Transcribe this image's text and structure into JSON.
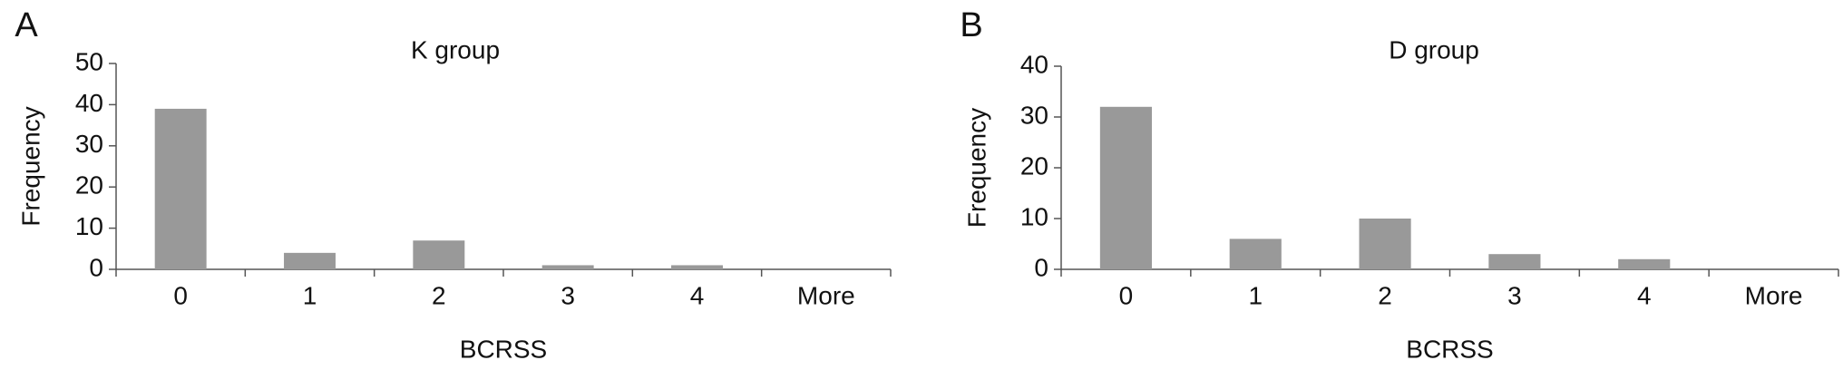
{
  "chart_data": [
    {
      "type": "bar",
      "panel": "A",
      "title": "K group",
      "xlabel": "BCRSS",
      "ylabel": "Frequency",
      "categories": [
        "0",
        "1",
        "2",
        "3",
        "4",
        "More"
      ],
      "values": [
        39,
        4,
        7,
        1,
        1,
        0
      ],
      "color": "#999999",
      "ylim": [
        0,
        50
      ],
      "yticks": [
        0,
        10,
        20,
        30,
        40,
        50
      ],
      "grid": false
    },
    {
      "type": "bar",
      "panel": "B",
      "title": "D group",
      "xlabel": "BCRSS",
      "ylabel": "Frequency",
      "categories": [
        "0",
        "1",
        "2",
        "3",
        "4",
        "More"
      ],
      "values": [
        32,
        6,
        10,
        3,
        2,
        0
      ],
      "color": "#999999",
      "ylim": [
        0,
        40
      ],
      "yticks": [
        0,
        10,
        20,
        30,
        40
      ],
      "grid": false
    }
  ]
}
